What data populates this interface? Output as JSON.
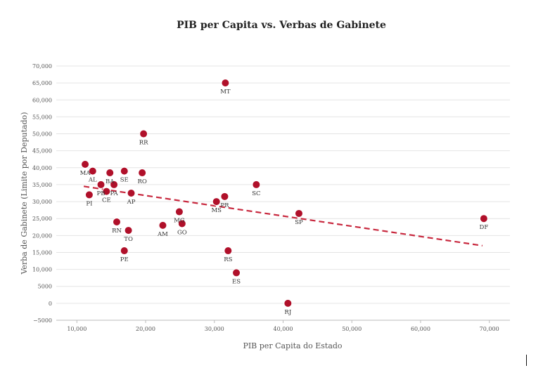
{
  "chart_data": {
    "type": "scatter",
    "title": "PIB per Capita vs. Verbas de Gabinete",
    "xlabel": "PIB per Capita do Estado",
    "ylabel": "Verba de Gabinete (Limite por Deputado)",
    "xlim": [
      7000,
      73000
    ],
    "ylim": [
      -5000,
      70000
    ],
    "xticks": [
      10000,
      20000,
      30000,
      40000,
      50000,
      60000,
      70000
    ],
    "yticks": [
      -5000,
      0,
      5000,
      10000,
      15000,
      20000,
      25000,
      30000,
      35000,
      40000,
      45000,
      50000,
      55000,
      60000,
      65000,
      70000
    ],
    "xtick_labels": [
      "10,000",
      "20,000",
      "30,000",
      "40,000",
      "50,000",
      "60,000",
      "70,000"
    ],
    "ytick_labels": [
      "−5000",
      "0",
      "5000",
      "10,000",
      "15,000",
      "20,000",
      "25,000",
      "30,000",
      "35,000",
      "40,000",
      "45,000",
      "50,000",
      "55,000",
      "60,000",
      "65,000",
      "70,000"
    ],
    "grid": true,
    "color": "#b0102a",
    "trendline": {
      "x": [
        11000,
        69000
      ],
      "y": [
        34500,
        17000
      ],
      "style": "dashed",
      "color": "#c8283e"
    },
    "points": [
      {
        "label": "MA",
        "x": 11200,
        "y": 41000
      },
      {
        "label": "AL",
        "x": 12300,
        "y": 39000
      },
      {
        "label": "PI",
        "x": 11800,
        "y": 32000
      },
      {
        "label": "PB",
        "x": 13500,
        "y": 35000
      },
      {
        "label": "CE",
        "x": 14300,
        "y": 33000
      },
      {
        "label": "BA",
        "x": 14800,
        "y": 38500
      },
      {
        "label": "PA",
        "x": 15400,
        "y": 35000
      },
      {
        "label": "SE",
        "x": 16900,
        "y": 39000
      },
      {
        "label": "RN",
        "x": 15800,
        "y": 24000
      },
      {
        "label": "PE",
        "x": 16900,
        "y": 15500
      },
      {
        "label": "TO",
        "x": 17500,
        "y": 21500
      },
      {
        "label": "AP",
        "x": 17900,
        "y": 32500
      },
      {
        "label": "RO",
        "x": 19500,
        "y": 38500
      },
      {
        "label": "RR",
        "x": 19700,
        "y": 50000
      },
      {
        "label": "AM",
        "x": 22500,
        "y": 23000
      },
      {
        "label": "MG",
        "x": 24900,
        "y": 27000
      },
      {
        "label": "GO",
        "x": 25300,
        "y": 23500
      },
      {
        "label": "MS",
        "x": 30300,
        "y": 30000
      },
      {
        "label": "PR",
        "x": 31500,
        "y": 31500
      },
      {
        "label": "MT",
        "x": 31600,
        "y": 65000
      },
      {
        "label": "RS",
        "x": 32000,
        "y": 15500
      },
      {
        "label": "ES",
        "x": 33200,
        "y": 9000
      },
      {
        "label": "SC",
        "x": 36100,
        "y": 35000
      },
      {
        "label": "RJ",
        "x": 40700,
        "y": 0
      },
      {
        "label": "SP",
        "x": 42300,
        "y": 26500
      },
      {
        "label": "DF",
        "x": 69200,
        "y": 25000
      }
    ]
  }
}
